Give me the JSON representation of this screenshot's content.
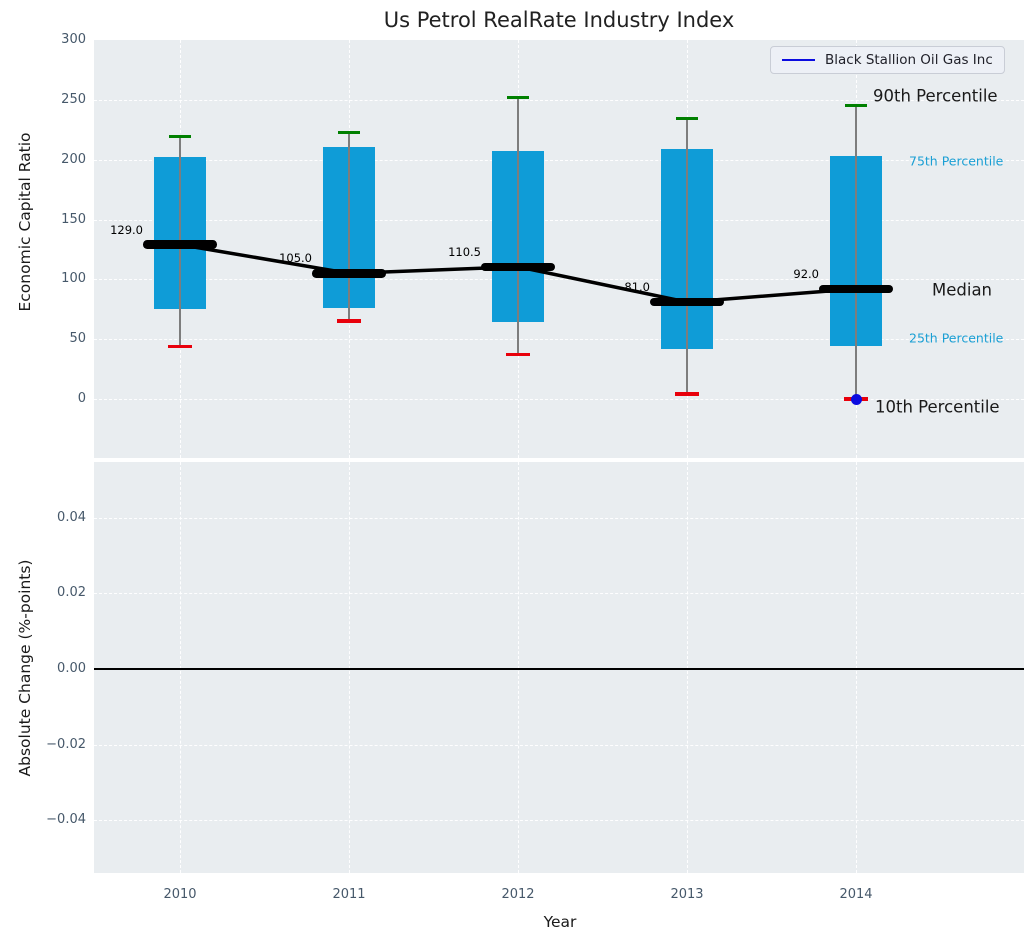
{
  "title": "Us Petrol RealRate Industry Index",
  "legend": {
    "label": "Black Stallion Oil Gas Inc"
  },
  "colors": {
    "plot_background": "#e9edf0",
    "grid": "#ffffff",
    "box": "#0f9cd7",
    "cap_high": "#008000",
    "cap_low": "#e8000b",
    "whisker": "#7d7d7d",
    "median": "#000000",
    "trend_line": "#000000",
    "company_point": "#0b0be0",
    "annotation_primary": "#1a1a1a",
    "annotation_secondary": "#1a9fd4",
    "tick_text": "#46586a",
    "zero_line": "#000000",
    "legend_line": "#0b0be0"
  },
  "chart_data": [
    {
      "type": "boxplot",
      "title": "Us Petrol RealRate Industry Index",
      "xlabel": "Year",
      "ylabel": "Economic Capital Ratio",
      "categories": [
        2010,
        2011,
        2012,
        2013,
        2014
      ],
      "xticklabels": [
        "2010",
        "2011",
        "2012",
        "2013",
        "2014"
      ],
      "yticks": [
        0,
        50,
        100,
        150,
        200,
        250,
        300
      ],
      "ylim": [
        -49.3,
        300
      ],
      "grid": true,
      "series": [
        {
          "name": "90th Percentile",
          "values": [
            219,
            223,
            252,
            234,
            245
          ]
        },
        {
          "name": "75th Percentile",
          "values": [
            202,
            211,
            207,
            209,
            203
          ]
        },
        {
          "name": "Median",
          "values": [
            129.0,
            105.0,
            110.5,
            81.0,
            92.0
          ]
        },
        {
          "name": "25th Percentile",
          "values": [
            75,
            76,
            64,
            42,
            44
          ]
        },
        {
          "name": "10th Percentile",
          "values": [
            44,
            65,
            37,
            4,
            0
          ]
        }
      ],
      "median_labels": [
        "129.0",
        "105.0",
        "110.5",
        "81.0",
        "92.0"
      ],
      "company_series": {
        "name": "Black Stallion Oil Gas Inc",
        "points": [
          {
            "year": 2014,
            "value": 0
          }
        ]
      },
      "annotations": [
        {
          "label": "90th Percentile",
          "style": "primary"
        },
        {
          "label": "75th Percentile",
          "style": "secondary"
        },
        {
          "label": "Median",
          "style": "primary"
        },
        {
          "label": "25th Percentile",
          "style": "secondary"
        },
        {
          "label": "10th Percentile",
          "style": "primary"
        }
      ],
      "legend_entries": [
        "Black Stallion Oil Gas Inc"
      ],
      "legend_position": "upper right"
    },
    {
      "type": "line",
      "xlabel": "Year",
      "ylabel": "Absolute Change (%-points)",
      "categories": [
        2010,
        2011,
        2012,
        2013,
        2014
      ],
      "yticks": [
        0.04,
        0.02,
        0.0,
        -0.02,
        -0.04
      ],
      "ylim": [
        -0.054,
        0.0548
      ],
      "grid": true,
      "zero_line": 0.0,
      "series": []
    }
  ]
}
